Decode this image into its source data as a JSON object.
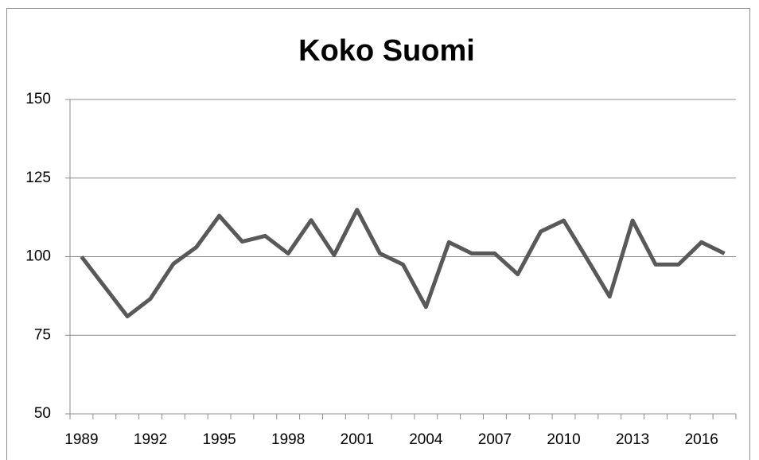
{
  "chart_data": {
    "type": "line",
    "title": "Koko Suomi",
    "categories": [
      "1989",
      null,
      null,
      "1992",
      null,
      null,
      "1995",
      null,
      null,
      "1998",
      null,
      null,
      "2001",
      null,
      null,
      "2004",
      null,
      null,
      "2007",
      null,
      null,
      "2010",
      null,
      null,
      "2013",
      null,
      null,
      "2016",
      null
    ],
    "series": [
      {
        "name": "Koko Suomi",
        "color": "#595959",
        "values": [
          100,
          90.5,
          81,
          86.6,
          97.7,
          103,
          113,
          104.8,
          106.6,
          101,
          111.6,
          100.5,
          114.9,
          101,
          97.5,
          84,
          104.6,
          101,
          101,
          94.4,
          108,
          111.5,
          99.5,
          87.3,
          111.5,
          97.5,
          97.5,
          104.6,
          101
        ]
      }
    ],
    "ylim": [
      50,
      150
    ],
    "yticks": [
      50,
      75,
      100,
      125,
      150
    ],
    "grid": true
  }
}
